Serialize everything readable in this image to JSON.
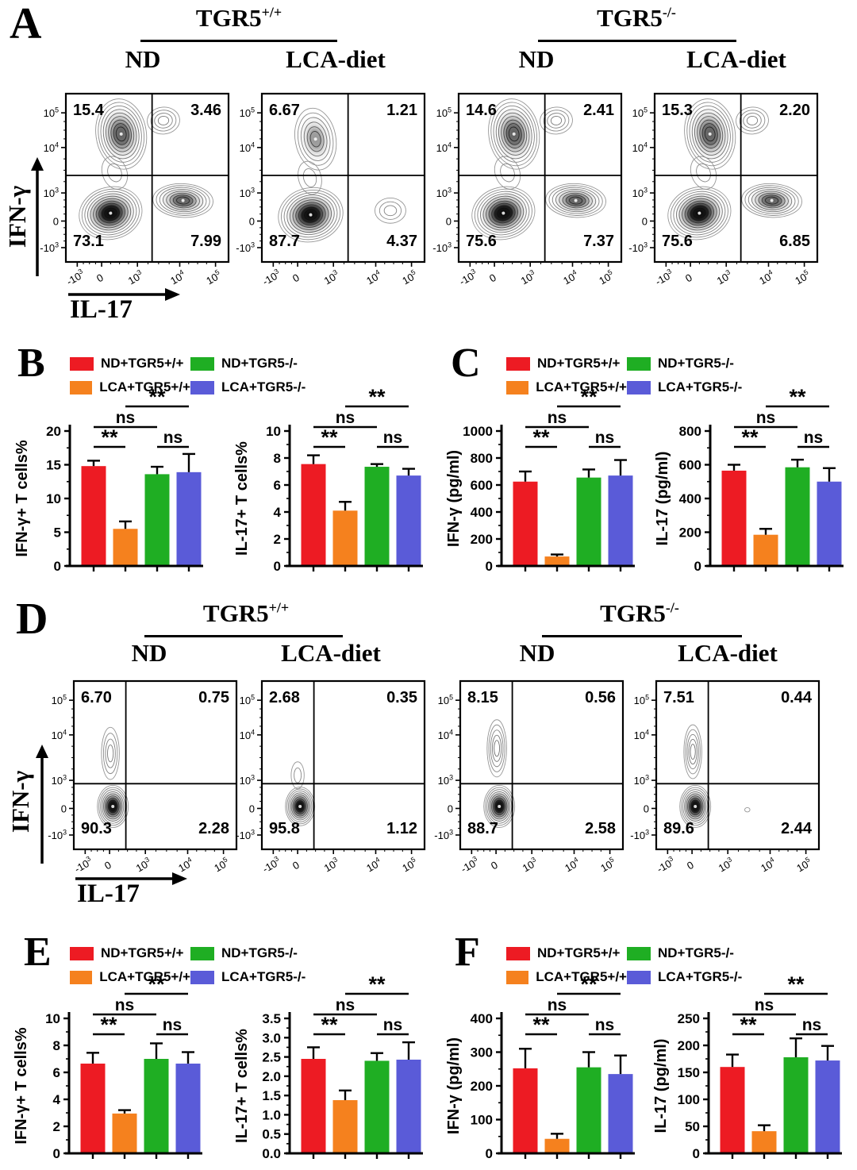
{
  "colors": {
    "red": "#ED1B23",
    "orange": "#F5811E",
    "green": "#1FAE23",
    "blue": "#5A5BD8",
    "axis": "#000000"
  },
  "legend": {
    "items": [
      {
        "label": "ND+TGR5+/+",
        "color_key": "red"
      },
      {
        "label": "ND+TGR5-/-",
        "color_key": "green"
      },
      {
        "label": "LCA+TGR5+/+",
        "color_key": "orange"
      },
      {
        "label": "LCA+TGR5-/-",
        "color_key": "blue"
      }
    ]
  },
  "panels": {
    "A": {
      "letter": "A",
      "x_axis_label": "IL-17",
      "y_axis_label": "IFN-γ",
      "groups": [
        {
          "name": "TGR5",
          "genotype": "+/+",
          "columns": [
            "ND",
            "LCA-diet"
          ]
        },
        {
          "name": "TGR5",
          "genotype": "-/-",
          "columns": [
            "ND",
            "LCA-diet"
          ]
        }
      ]
    },
    "B": {
      "letter": "B"
    },
    "C": {
      "letter": "C"
    },
    "D": {
      "letter": "D",
      "x_axis_label": "IL-17",
      "y_axis_label": "IFN-γ",
      "groups": [
        {
          "name": "TGR5",
          "genotype": "+/+",
          "columns": [
            "ND",
            "LCA-diet"
          ]
        },
        {
          "name": "TGR5",
          "genotype": "-/-",
          "columns": [
            "ND",
            "LCA-diet"
          ]
        }
      ]
    },
    "E": {
      "letter": "E"
    },
    "F": {
      "letter": "F"
    }
  },
  "flow_ticks": {
    "x": [
      "-10^3",
      "0",
      "10^3",
      "10^4",
      "10^5"
    ],
    "y": [
      "10^5",
      "10^4",
      "10^3",
      "0",
      "-10^3"
    ]
  },
  "significance_pattern": [
    {
      "pair": [
        0,
        1
      ],
      "label": "**",
      "level": 1
    },
    {
      "pair": [
        0,
        2
      ],
      "label": "ns",
      "level": 2
    },
    {
      "pair": [
        2,
        3
      ],
      "label": "ns",
      "level": 1
    },
    {
      "pair": [
        1,
        3
      ],
      "label": "**",
      "level": 3
    }
  ],
  "chart_data": [
    {
      "id": "A1",
      "panel": "A",
      "type": "contour",
      "group": "TGR5+/+",
      "condition": "ND",
      "xlabel": "IL-17",
      "ylabel": "IFN-γ",
      "quadrants": {
        "ul": "15.4",
        "ur": "3.46",
        "ll": "73.1",
        "lr": "7.99"
      }
    },
    {
      "id": "A2",
      "panel": "A",
      "type": "contour",
      "group": "TGR5+/+",
      "condition": "LCA-diet",
      "xlabel": "IL-17",
      "ylabel": "IFN-γ",
      "quadrants": {
        "ul": "6.67",
        "ur": "1.21",
        "ll": "87.7",
        "lr": "4.37"
      }
    },
    {
      "id": "A3",
      "panel": "A",
      "type": "contour",
      "group": "TGR5-/-",
      "condition": "ND",
      "xlabel": "IL-17",
      "ylabel": "IFN-γ",
      "quadrants": {
        "ul": "14.6",
        "ur": "2.41",
        "ll": "75.6",
        "lr": "7.37"
      }
    },
    {
      "id": "A4",
      "panel": "A",
      "type": "contour",
      "group": "TGR5-/-",
      "condition": "LCA-diet",
      "xlabel": "IL-17",
      "ylabel": "IFN-γ",
      "quadrants": {
        "ul": "15.3",
        "ur": "2.20",
        "ll": "75.6",
        "lr": "6.85"
      }
    },
    {
      "id": "D1",
      "panel": "D",
      "type": "contour",
      "group": "TGR5+/+",
      "condition": "ND",
      "xlabel": "IL-17",
      "ylabel": "IFN-γ",
      "quadrants": {
        "ul": "6.70",
        "ur": "0.75",
        "ll": "90.3",
        "lr": "2.28"
      }
    },
    {
      "id": "D2",
      "panel": "D",
      "type": "contour",
      "group": "TGR5+/+",
      "condition": "LCA-diet",
      "xlabel": "IL-17",
      "ylabel": "IFN-γ",
      "quadrants": {
        "ul": "2.68",
        "ur": "0.35",
        "ll": "95.8",
        "lr": "1.12"
      }
    },
    {
      "id": "D3",
      "panel": "D",
      "type": "contour",
      "group": "TGR5-/-",
      "condition": "ND",
      "xlabel": "IL-17",
      "ylabel": "IFN-γ",
      "quadrants": {
        "ul": "8.15",
        "ur": "0.56",
        "ll": "88.7",
        "lr": "2.58"
      }
    },
    {
      "id": "D4",
      "panel": "D",
      "type": "contour",
      "group": "TGR5-/-",
      "condition": "LCA-diet",
      "xlabel": "IL-17",
      "ylabel": "IFN-γ",
      "quadrants": {
        "ul": "7.51",
        "ur": "0.44",
        "ll": "89.6",
        "lr": "2.44"
      }
    },
    {
      "id": "B1",
      "panel": "B",
      "type": "bar",
      "ylabel": "IFN-γ+ T cells%",
      "ylim": [
        0,
        20
      ],
      "ytick_step": 5,
      "decimals": 0,
      "categories": [
        "ND+TGR5+/+",
        "LCA+TGR5+/+",
        "ND+TGR5-/-",
        "LCA+TGR5-/-"
      ],
      "values": [
        14.8,
        5.5,
        13.6,
        13.9
      ],
      "errors": [
        0.8,
        1.1,
        1.1,
        2.7
      ],
      "color_keys": [
        "red",
        "orange",
        "green",
        "blue"
      ]
    },
    {
      "id": "B2",
      "panel": "B",
      "type": "bar",
      "ylabel": "IL-17+ T cells%",
      "ylim": [
        0,
        10
      ],
      "ytick_step": 2,
      "decimals": 0,
      "categories": [
        "ND+TGR5+/+",
        "LCA+TGR5+/+",
        "ND+TGR5-/-",
        "LCA+TGR5-/-"
      ],
      "values": [
        7.55,
        4.1,
        7.35,
        6.7
      ],
      "errors": [
        0.65,
        0.65,
        0.2,
        0.5
      ],
      "color_keys": [
        "red",
        "orange",
        "green",
        "blue"
      ]
    },
    {
      "id": "C1",
      "panel": "C",
      "type": "bar",
      "ylabel": "IFN-γ (pg/ml)",
      "ylim": [
        0,
        1000
      ],
      "ytick_step": 200,
      "decimals": 0,
      "categories": [
        "ND+TGR5+/+",
        "LCA+TGR5+/+",
        "ND+TGR5-/-",
        "LCA+TGR5-/-"
      ],
      "values": [
        625,
        70,
        655,
        670
      ],
      "errors": [
        75,
        15,
        60,
        115
      ],
      "color_keys": [
        "red",
        "orange",
        "green",
        "blue"
      ]
    },
    {
      "id": "C2",
      "panel": "C",
      "type": "bar",
      "ylabel": "IL-17 (pg/ml)",
      "ylim": [
        0,
        800
      ],
      "ytick_step": 200,
      "decimals": 0,
      "categories": [
        "ND+TGR5+/+",
        "LCA+TGR5+/+",
        "ND+TGR5-/-",
        "LCA+TGR5-/-"
      ],
      "values": [
        565,
        185,
        585,
        500
      ],
      "errors": [
        35,
        35,
        45,
        80
      ],
      "color_keys": [
        "red",
        "orange",
        "green",
        "blue"
      ]
    },
    {
      "id": "E1",
      "panel": "E",
      "type": "bar",
      "ylabel": "IFN-γ+ T cells%",
      "ylim": [
        0,
        10
      ],
      "ytick_step": 2,
      "decimals": 0,
      "categories": [
        "ND+TGR5+/+",
        "LCA+TGR5+/+",
        "ND+TGR5-/-",
        "LCA+TGR5-/-"
      ],
      "values": [
        6.65,
        2.95,
        7.0,
        6.65
      ],
      "errors": [
        0.8,
        0.25,
        1.15,
        0.85
      ],
      "color_keys": [
        "red",
        "orange",
        "green",
        "blue"
      ]
    },
    {
      "id": "E2",
      "panel": "E",
      "type": "bar",
      "ylabel": "IL-17+ T cells%",
      "ylim": [
        0,
        3.5
      ],
      "ytick_step": 0.5,
      "decimals": 1,
      "categories": [
        "ND+TGR5+/+",
        "LCA+TGR5+/+",
        "ND+TGR5-/-",
        "LCA+TGR5-/-"
      ],
      "values": [
        2.45,
        1.38,
        2.4,
        2.43
      ],
      "errors": [
        0.3,
        0.25,
        0.2,
        0.45
      ],
      "color_keys": [
        "red",
        "orange",
        "green",
        "blue"
      ]
    },
    {
      "id": "F1",
      "panel": "F",
      "type": "bar",
      "ylabel": "IFN-γ (pg/ml)",
      "ylim": [
        0,
        400
      ],
      "ytick_step": 100,
      "decimals": 0,
      "categories": [
        "ND+TGR5+/+",
        "LCA+TGR5+/+",
        "ND+TGR5-/-",
        "LCA+TGR5-/-"
      ],
      "values": [
        252,
        43,
        255,
        235
      ],
      "errors": [
        58,
        15,
        45,
        55
      ],
      "color_keys": [
        "red",
        "orange",
        "green",
        "blue"
      ]
    },
    {
      "id": "F2",
      "panel": "F",
      "type": "bar",
      "ylabel": "IL-17 (pg/ml)",
      "ylim": [
        0,
        250
      ],
      "ytick_step": 50,
      "decimals": 0,
      "categories": [
        "ND+TGR5+/+",
        "LCA+TGR5+/+",
        "ND+TGR5-/-",
        "LCA+TGR5-/-"
      ],
      "values": [
        160,
        41,
        178,
        172
      ],
      "errors": [
        23,
        11,
        35,
        27
      ],
      "color_keys": [
        "red",
        "orange",
        "green",
        "blue"
      ]
    }
  ]
}
